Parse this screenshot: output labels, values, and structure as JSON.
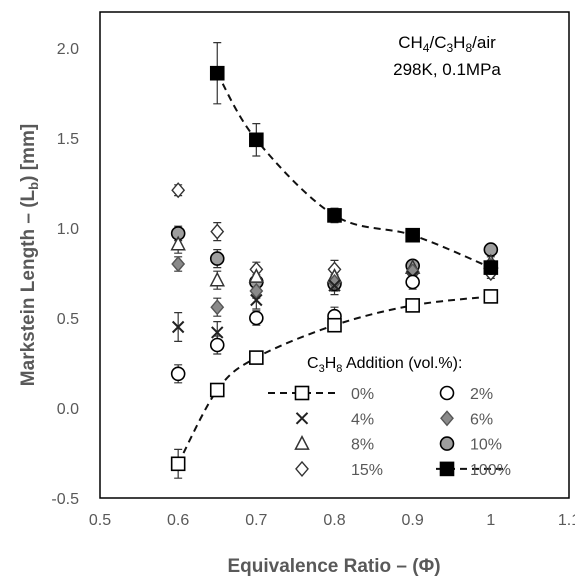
{
  "chart_data": {
    "type": "scatter",
    "xlabel_main": "Equivalence Ratio – (",
    "xlabel_symbol": "Φ",
    "xlabel_end": ")",
    "ylabel_main": "Markstein Length – (L",
    "ylabel_sub": "b",
    "ylabel_end": ") [mm]",
    "xlim": [
      0.5,
      1.1
    ],
    "ylim": [
      -0.5,
      2.2
    ],
    "xticks": [
      "0.5",
      "0.6",
      "0.7",
      "0.8",
      "0.9",
      "1",
      "1.1"
    ],
    "yticks": [
      "-0.5",
      "0.0",
      "0.5",
      "1.0",
      "1.5",
      "2.0"
    ],
    "annotation": {
      "line1_a": "CH",
      "line1_b": "4",
      "line1_c": "/C",
      "line1_d": "3",
      "line1_e": "H",
      "line1_f": "8",
      "line1_g": "/air",
      "line2": "298K, 0.1MPa"
    },
    "legend_title": {
      "a": "C",
      "b": "3",
      "c": "H",
      "d": "8",
      "e": " Addition (vol.%):"
    },
    "legend_position": "lower-right",
    "grid": false,
    "series": [
      {
        "name": "0%",
        "marker": "square-open",
        "dashed": true,
        "x": [
          0.6,
          0.65,
          0.7,
          0.8,
          0.9,
          1.0
        ],
        "y": [
          -0.31,
          0.1,
          0.28,
          0.46,
          0.57,
          0.62
        ],
        "err": [
          0.08,
          0.03,
          0.0,
          0.03,
          0.03,
          0.03
        ]
      },
      {
        "name": "2%",
        "marker": "circle-open",
        "dashed": false,
        "x": [
          0.6,
          0.65,
          0.7,
          0.8,
          0.9,
          1.0
        ],
        "y": [
          0.19,
          0.35,
          0.5,
          0.51,
          0.7,
          0.78
        ],
        "err": [
          0.05,
          0.05,
          0.04,
          0.05,
          0.04,
          0.03
        ]
      },
      {
        "name": "4%",
        "marker": "cross",
        "dashed": false,
        "x": [
          0.6,
          0.65,
          0.7,
          0.8,
          0.9,
          1.0
        ],
        "y": [
          0.45,
          0.42,
          0.6,
          0.68,
          0.73,
          0.78
        ],
        "err": [
          0.08,
          0.06,
          0.05,
          0.05,
          0.04,
          0.03
        ]
      },
      {
        "name": "6%",
        "marker": "diamond-filled",
        "dashed": false,
        "x": [
          0.6,
          0.65,
          0.7,
          0.8,
          0.9,
          1.0
        ],
        "y": [
          0.8,
          0.56,
          0.65,
          0.7,
          0.76,
          0.79
        ],
        "err": [
          0.04,
          0.05,
          0.04,
          0.04,
          0.03,
          0.03
        ]
      },
      {
        "name": "8%",
        "marker": "triangle-open",
        "dashed": false,
        "x": [
          0.6,
          0.65,
          0.7,
          0.8,
          0.9,
          1.0
        ],
        "y": [
          0.91,
          0.71,
          0.73,
          0.73,
          0.78,
          0.81
        ],
        "err": [
          0.05,
          0.05,
          0.04,
          0.04,
          0.03,
          0.03
        ]
      },
      {
        "name": "10%",
        "marker": "circle-filled",
        "dashed": false,
        "x": [
          0.6,
          0.65,
          0.7,
          0.8,
          0.9,
          1.0
        ],
        "y": [
          0.97,
          0.83,
          0.7,
          0.69,
          0.79,
          0.88
        ],
        "err": [
          0.04,
          0.05,
          0.04,
          0.04,
          0.03,
          0.03
        ]
      },
      {
        "name": "15%",
        "marker": "diamond-open",
        "dashed": false,
        "x": [
          0.6,
          0.65,
          0.7,
          0.8,
          0.9,
          1.0
        ],
        "y": [
          1.21,
          0.98,
          0.77,
          0.77,
          0.75,
          0.75
        ],
        "err": [
          0.03,
          0.05,
          0.04,
          0.05,
          0.04,
          0.03
        ]
      },
      {
        "name": "100%",
        "marker": "square-filled",
        "dashed": true,
        "x": [
          0.65,
          0.7,
          0.8,
          0.9,
          1.0
        ],
        "y": [
          1.86,
          1.49,
          1.07,
          0.96,
          0.78
        ],
        "err": [
          0.17,
          0.09,
          0.04,
          0.03,
          0.03
        ]
      }
    ],
    "colors": {
      "text": "#595959",
      "marker_dark": "#000000",
      "marker_fill_gray": "#9e9e9e",
      "axis": "#000000"
    }
  }
}
